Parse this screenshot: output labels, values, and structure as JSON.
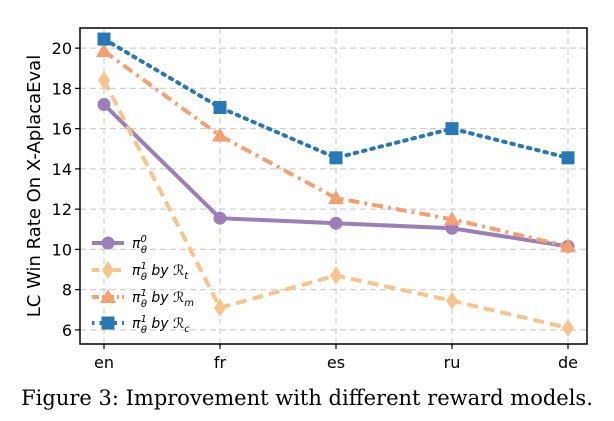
{
  "chart_data": {
    "type": "line",
    "categories": [
      "en",
      "fr",
      "es",
      "ru",
      "de"
    ],
    "ylabel": "LC Win Rate On X-AplacaEval",
    "yticks": [
      6,
      8,
      10,
      12,
      14,
      16,
      18,
      20
    ],
    "ylim": [
      5.3,
      21.0
    ],
    "grid": true,
    "legend_position": "bottom-left",
    "series": [
      {
        "name": "π_θ^0",
        "values": [
          17.2,
          11.55,
          11.3,
          11.05,
          10.15
        ],
        "color": "#9b7fba",
        "marker": "circle",
        "dash": "solid"
      },
      {
        "name": "π_θ^1 by R_t",
        "values": [
          18.4,
          7.1,
          8.7,
          7.45,
          6.1
        ],
        "color": "#f9c48c",
        "marker": "diamond",
        "dash": "dashed"
      },
      {
        "name": "π_θ^1 by R_m",
        "values": [
          19.85,
          15.65,
          12.55,
          11.5,
          10.15
        ],
        "color": "#f6a070",
        "marker": "triangle",
        "dash": "dashdot"
      },
      {
        "name": "π_θ^1 by R_c",
        "values": [
          20.45,
          17.05,
          14.55,
          16.0,
          14.55
        ],
        "color": "#2878b5",
        "marker": "square",
        "dash": "dotted"
      }
    ]
  },
  "legend": [
    {
      "base": "π",
      "sup": "0",
      "sub": "θ",
      "suffix": ""
    },
    {
      "base": "π",
      "sup": "1",
      "sub": "θ",
      "suffix": " by ℛ",
      "rsub": "t"
    },
    {
      "base": "π",
      "sup": "1",
      "sub": "θ",
      "suffix": " by ℛ",
      "rsub": "m"
    },
    {
      "base": "π",
      "sup": "1",
      "sub": "θ",
      "suffix": " by ℛ",
      "rsub": "c"
    }
  ],
  "caption": "Figure 3: Improvement with different reward models."
}
